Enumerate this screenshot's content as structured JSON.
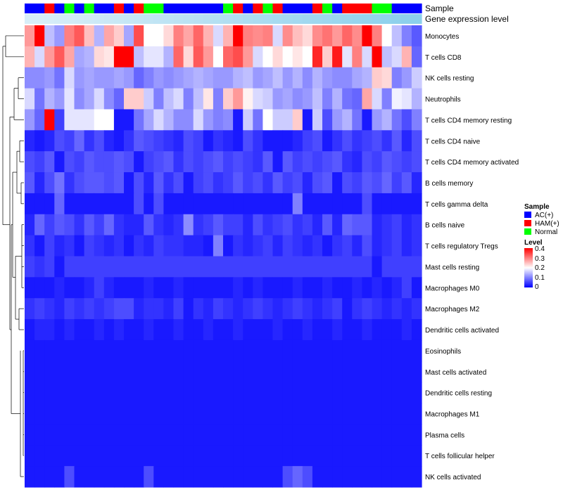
{
  "chart_data": {
    "type": "heatmap",
    "title": "",
    "annotation_labels": [
      "Sample",
      "Gene expression level"
    ],
    "rows": [
      "Monocytes",
      "T cells CD8",
      "NK cells resting",
      "Neutrophils",
      "T cells CD4 memory resting",
      "T cells CD4 naive",
      "T cells CD4 memory activated",
      "B cells memory",
      "T cells gamma delta",
      "B cells naive",
      "T cells regulatory  Tregs",
      "Mast cells resting",
      "Macrophages M0",
      "Macrophages M2",
      "Dendritic cells activated",
      "Eosinophils",
      "Mast cells activated",
      "Dendritic cells resting",
      "Macrophages M1",
      "Plasma cells",
      "T cells follicular helper",
      "NK cells activated"
    ],
    "sample_groups": [
      "AC(+)",
      "AC(+)",
      "HAM(+)",
      "AC(+)",
      "Normal",
      "AC(+)",
      "Normal",
      "AC(+)",
      "AC(+)",
      "HAM(+)",
      "AC(+)",
      "HAM(+)",
      "Normal",
      "Normal",
      "AC(+)",
      "AC(+)",
      "AC(+)",
      "AC(+)",
      "AC(+)",
      "AC(+)",
      "Normal",
      "HAM(+)",
      "AC(+)",
      "HAM(+)",
      "Normal",
      "HAM(+)",
      "AC(+)",
      "AC(+)",
      "AC(+)",
      "HAM(+)",
      "Normal",
      "AC(+)",
      "HAM(+)",
      "HAM(+)",
      "HAM(+)",
      "Normal",
      "Normal",
      "AC(+)",
      "AC(+)",
      "AC(+)"
    ],
    "expression_level": [
      0.95,
      0.95,
      0.94,
      0.93,
      0.92,
      0.91,
      0.9,
      0.89,
      0.88,
      0.87,
      0.86,
      0.85,
      0.84,
      0.83,
      0.82,
      0.81,
      0.8,
      0.79,
      0.78,
      0.77,
      0.76,
      0.75,
      0.74,
      0.73,
      0.72,
      0.71,
      0.7,
      0.69,
      0.68,
      0.67,
      0.66,
      0.65,
      0.64,
      0.63,
      0.62,
      0.61,
      0.6,
      0.59,
      0.58,
      0.57
    ],
    "values": [
      [
        0.28,
        0.4,
        0.15,
        0.12,
        0.3,
        0.33,
        0.25,
        0.14,
        0.27,
        0.24,
        0.13,
        0.34,
        0.2,
        0.2,
        0.23,
        0.3,
        0.27,
        0.32,
        0.26,
        0.17,
        0.26,
        0.4,
        0.3,
        0.29,
        0.3,
        0.17,
        0.29,
        0.25,
        0.23,
        0.29,
        0.31,
        0.28,
        0.32,
        0.29,
        0.4,
        0.3,
        0.2,
        0.15,
        0.1,
        0.07
      ],
      [
        0.26,
        0.17,
        0.28,
        0.33,
        0.27,
        0.13,
        0.14,
        0.23,
        0.22,
        0.4,
        0.4,
        0.15,
        0.18,
        0.18,
        0.14,
        0.32,
        0.23,
        0.33,
        0.28,
        0.2,
        0.32,
        0.34,
        0.28,
        0.17,
        0.2,
        0.23,
        0.2,
        0.22,
        0.2,
        0.37,
        0.24,
        0.38,
        0.18,
        0.3,
        0.17,
        0.4,
        0.15,
        0.17,
        0.26,
        0.08
      ],
      [
        0.11,
        0.11,
        0.12,
        0.09,
        0.17,
        0.12,
        0.13,
        0.12,
        0.12,
        0.13,
        0.12,
        0.08,
        0.1,
        0.12,
        0.11,
        0.12,
        0.13,
        0.14,
        0.13,
        0.12,
        0.12,
        0.14,
        0.15,
        0.12,
        0.13,
        0.15,
        0.12,
        0.14,
        0.11,
        0.14,
        0.12,
        0.11,
        0.11,
        0.13,
        0.14,
        0.24,
        0.23,
        0.1,
        0.12,
        0.16
      ],
      [
        0.17,
        0.09,
        0.14,
        0.12,
        0.18,
        0.11,
        0.13,
        0.17,
        0.11,
        0.08,
        0.24,
        0.24,
        0.16,
        0.1,
        0.15,
        0.17,
        0.1,
        0.15,
        0.22,
        0.1,
        0.24,
        0.28,
        0.21,
        0.17,
        0.16,
        0.12,
        0.13,
        0.11,
        0.12,
        0.15,
        0.1,
        0.14,
        0.09,
        0.08,
        0.27,
        0.17,
        0.1,
        0.19,
        0.18,
        0.14
      ],
      [
        0.12,
        0.08,
        0.4,
        0.05,
        0.18,
        0.18,
        0.18,
        0.2,
        0.2,
        0.02,
        0.02,
        0.09,
        0.13,
        0.17,
        0.14,
        0.11,
        0.11,
        0.17,
        0.12,
        0.1,
        0.11,
        0.02,
        0.16,
        0.09,
        0.2,
        0.16,
        0.16,
        0.24,
        0.02,
        0.16,
        0.06,
        0.12,
        0.14,
        0.09,
        0.02,
        0.12,
        0.14,
        0.09,
        0.06,
        0.1
      ],
      [
        0.03,
        0.02,
        0.03,
        0.06,
        0.05,
        0.08,
        0.04,
        0.06,
        0.03,
        0.02,
        0.04,
        0.07,
        0.06,
        0.05,
        0.04,
        0.03,
        0.06,
        0.05,
        0.02,
        0.04,
        0.03,
        0.02,
        0.06,
        0.04,
        0.02,
        0.02,
        0.02,
        0.03,
        0.05,
        0.06,
        0.02,
        0.04,
        0.06,
        0.04,
        0.05,
        0.06,
        0.04,
        0.07,
        0.03,
        0.06
      ],
      [
        0.06,
        0.05,
        0.07,
        0.02,
        0.06,
        0.05,
        0.07,
        0.06,
        0.06,
        0.07,
        0.06,
        0.02,
        0.05,
        0.06,
        0.07,
        0.04,
        0.06,
        0.05,
        0.06,
        0.07,
        0.05,
        0.06,
        0.05,
        0.04,
        0.07,
        0.02,
        0.07,
        0.05,
        0.06,
        0.05,
        0.06,
        0.07,
        0.04,
        0.03,
        0.06,
        0.05,
        0.07,
        0.06,
        0.05,
        0.06
      ],
      [
        0.07,
        0.03,
        0.06,
        0.09,
        0.04,
        0.06,
        0.07,
        0.07,
        0.06,
        0.07,
        0.02,
        0.06,
        0.03,
        0.07,
        0.04,
        0.06,
        0.02,
        0.05,
        0.06,
        0.04,
        0.05,
        0.07,
        0.05,
        0.06,
        0.04,
        0.07,
        0.05,
        0.06,
        0.03,
        0.06,
        0.07,
        0.02,
        0.06,
        0.05,
        0.07,
        0.06,
        0.08,
        0.05,
        0.07,
        0.03
      ],
      [
        0.02,
        0.02,
        0.02,
        0.08,
        0.02,
        0.02,
        0.02,
        0.02,
        0.02,
        0.02,
        0.02,
        0.06,
        0.02,
        0.06,
        0.02,
        0.02,
        0.02,
        0.02,
        0.02,
        0.02,
        0.02,
        0.02,
        0.02,
        0.02,
        0.02,
        0.02,
        0.02,
        0.1,
        0.02,
        0.02,
        0.02,
        0.02,
        0.02,
        0.02,
        0.06,
        0.02,
        0.02,
        0.02,
        0.02,
        0.02
      ],
      [
        0.03,
        0.08,
        0.05,
        0.07,
        0.06,
        0.04,
        0.07,
        0.05,
        0.08,
        0.04,
        0.03,
        0.03,
        0.07,
        0.04,
        0.03,
        0.04,
        0.11,
        0.04,
        0.05,
        0.07,
        0.05,
        0.05,
        0.03,
        0.06,
        0.04,
        0.05,
        0.06,
        0.04,
        0.05,
        0.03,
        0.07,
        0.03,
        0.08,
        0.07,
        0.07,
        0.03,
        0.04,
        0.05,
        0.03,
        0.04
      ],
      [
        0.04,
        0.02,
        0.05,
        0.03,
        0.04,
        0.02,
        0.05,
        0.04,
        0.03,
        0.04,
        0.02,
        0.04,
        0.03,
        0.05,
        0.04,
        0.04,
        0.03,
        0.03,
        0.02,
        0.1,
        0.02,
        0.04,
        0.03,
        0.04,
        0.05,
        0.03,
        0.05,
        0.04,
        0.03,
        0.04,
        0.02,
        0.04,
        0.05,
        0.03,
        0.06,
        0.03,
        0.04,
        0.05,
        0.03,
        0.04
      ],
      [
        0.05,
        0.04,
        0.05,
        0.02,
        0.05,
        0.05,
        0.05,
        0.05,
        0.05,
        0.05,
        0.05,
        0.05,
        0.05,
        0.05,
        0.05,
        0.05,
        0.05,
        0.05,
        0.05,
        0.05,
        0.05,
        0.05,
        0.05,
        0.05,
        0.05,
        0.05,
        0.05,
        0.05,
        0.05,
        0.05,
        0.05,
        0.05,
        0.05,
        0.05,
        0.05,
        0.02,
        0.05,
        0.05,
        0.05,
        0.05
      ],
      [
        0.02,
        0.02,
        0.02,
        0.03,
        0.02,
        0.02,
        0.03,
        0.05,
        0.03,
        0.02,
        0.02,
        0.02,
        0.03,
        0.02,
        0.02,
        0.03,
        0.02,
        0.02,
        0.02,
        0.02,
        0.02,
        0.03,
        0.02,
        0.03,
        0.02,
        0.02,
        0.02,
        0.03,
        0.02,
        0.02,
        0.03,
        0.02,
        0.02,
        0.03,
        0.02,
        0.03,
        0.02,
        0.03,
        0.05,
        0.02
      ],
      [
        0.04,
        0.05,
        0.04,
        0.03,
        0.05,
        0.04,
        0.05,
        0.04,
        0.05,
        0.06,
        0.06,
        0.03,
        0.04,
        0.04,
        0.03,
        0.05,
        0.02,
        0.04,
        0.03,
        0.05,
        0.04,
        0.03,
        0.04,
        0.05,
        0.04,
        0.03,
        0.04,
        0.05,
        0.04,
        0.03,
        0.04,
        0.05,
        0.02,
        0.04,
        0.05,
        0.04,
        0.03,
        0.04,
        0.03,
        0.04
      ],
      [
        0.02,
        0.03,
        0.03,
        0.02,
        0.03,
        0.02,
        0.02,
        0.03,
        0.02,
        0.03,
        0.02,
        0.02,
        0.03,
        0.02,
        0.02,
        0.03,
        0.02,
        0.02,
        0.03,
        0.02,
        0.02,
        0.03,
        0.02,
        0.02,
        0.02,
        0.03,
        0.02,
        0.02,
        0.03,
        0.02,
        0.02,
        0.03,
        0.02,
        0.02,
        0.03,
        0.02,
        0.02,
        0.02,
        0.03,
        0.02
      ],
      [
        0.02,
        0.02,
        0.02,
        0.02,
        0.02,
        0.02,
        0.02,
        0.02,
        0.02,
        0.02,
        0.02,
        0.02,
        0.02,
        0.02,
        0.02,
        0.02,
        0.02,
        0.02,
        0.02,
        0.02,
        0.02,
        0.02,
        0.02,
        0.02,
        0.02,
        0.02,
        0.02,
        0.02,
        0.02,
        0.02,
        0.02,
        0.02,
        0.02,
        0.02,
        0.02,
        0.02,
        0.02,
        0.02,
        0.02,
        0.02
      ],
      [
        0.02,
        0.02,
        0.02,
        0.02,
        0.02,
        0.02,
        0.02,
        0.02,
        0.02,
        0.02,
        0.02,
        0.02,
        0.02,
        0.02,
        0.02,
        0.02,
        0.02,
        0.02,
        0.02,
        0.02,
        0.02,
        0.02,
        0.02,
        0.02,
        0.02,
        0.02,
        0.02,
        0.02,
        0.02,
        0.02,
        0.02,
        0.02,
        0.02,
        0.02,
        0.02,
        0.02,
        0.02,
        0.02,
        0.02,
        0.02
      ],
      [
        0.02,
        0.02,
        0.02,
        0.02,
        0.02,
        0.02,
        0.02,
        0.02,
        0.02,
        0.02,
        0.02,
        0.02,
        0.02,
        0.02,
        0.02,
        0.02,
        0.02,
        0.02,
        0.02,
        0.02,
        0.02,
        0.02,
        0.02,
        0.02,
        0.02,
        0.02,
        0.02,
        0.02,
        0.02,
        0.02,
        0.02,
        0.02,
        0.02,
        0.02,
        0.02,
        0.02,
        0.02,
        0.02,
        0.02,
        0.02
      ],
      [
        0.02,
        0.02,
        0.02,
        0.02,
        0.02,
        0.02,
        0.02,
        0.02,
        0.02,
        0.02,
        0.02,
        0.02,
        0.02,
        0.02,
        0.02,
        0.02,
        0.02,
        0.02,
        0.02,
        0.02,
        0.02,
        0.02,
        0.02,
        0.02,
        0.02,
        0.02,
        0.02,
        0.02,
        0.02,
        0.02,
        0.02,
        0.02,
        0.02,
        0.02,
        0.02,
        0.02,
        0.02,
        0.02,
        0.02,
        0.02
      ],
      [
        0.02,
        0.02,
        0.02,
        0.02,
        0.02,
        0.02,
        0.02,
        0.02,
        0.02,
        0.02,
        0.02,
        0.02,
        0.02,
        0.02,
        0.02,
        0.02,
        0.02,
        0.02,
        0.02,
        0.02,
        0.02,
        0.02,
        0.02,
        0.02,
        0.02,
        0.02,
        0.02,
        0.02,
        0.02,
        0.02,
        0.02,
        0.02,
        0.02,
        0.02,
        0.02,
        0.02,
        0.02,
        0.02,
        0.02,
        0.02
      ],
      [
        0.02,
        0.02,
        0.02,
        0.02,
        0.02,
        0.02,
        0.02,
        0.02,
        0.02,
        0.02,
        0.02,
        0.02,
        0.02,
        0.02,
        0.02,
        0.02,
        0.02,
        0.02,
        0.02,
        0.02,
        0.02,
        0.02,
        0.02,
        0.02,
        0.02,
        0.02,
        0.02,
        0.02,
        0.02,
        0.02,
        0.02,
        0.02,
        0.02,
        0.02,
        0.02,
        0.02,
        0.02,
        0.02,
        0.02,
        0.02
      ],
      [
        0.02,
        0.02,
        0.02,
        0.02,
        0.06,
        0.02,
        0.02,
        0.02,
        0.02,
        0.02,
        0.02,
        0.02,
        0.06,
        0.02,
        0.02,
        0.02,
        0.02,
        0.02,
        0.02,
        0.02,
        0.02,
        0.02,
        0.02,
        0.02,
        0.02,
        0.02,
        0.06,
        0.08,
        0.06,
        0.02,
        0.02,
        0.02,
        0.02,
        0.02,
        0.02,
        0.02,
        0.02,
        0.02,
        0.02,
        0.02
      ]
    ],
    "legend_sample": {
      "title": "Sample",
      "entries": [
        {
          "label": "AC(+)",
          "color": "#0000ff"
        },
        {
          "label": "HAM(+)",
          "color": "#ff0000"
        },
        {
          "label": "Normal",
          "color": "#00ff00"
        }
      ]
    },
    "legend_level": {
      "title": "Level",
      "ticks": [
        "0.4",
        "0.3",
        "0.2",
        "0.1",
        "0"
      ],
      "range": [
        0,
        0.4
      ]
    },
    "colors": {
      "low": "#0000ff",
      "mid": "#ffffff",
      "high": "#ff0000"
    },
    "expression_colors": {
      "low": "#87ceeb",
      "high": "#d8eef8"
    }
  }
}
